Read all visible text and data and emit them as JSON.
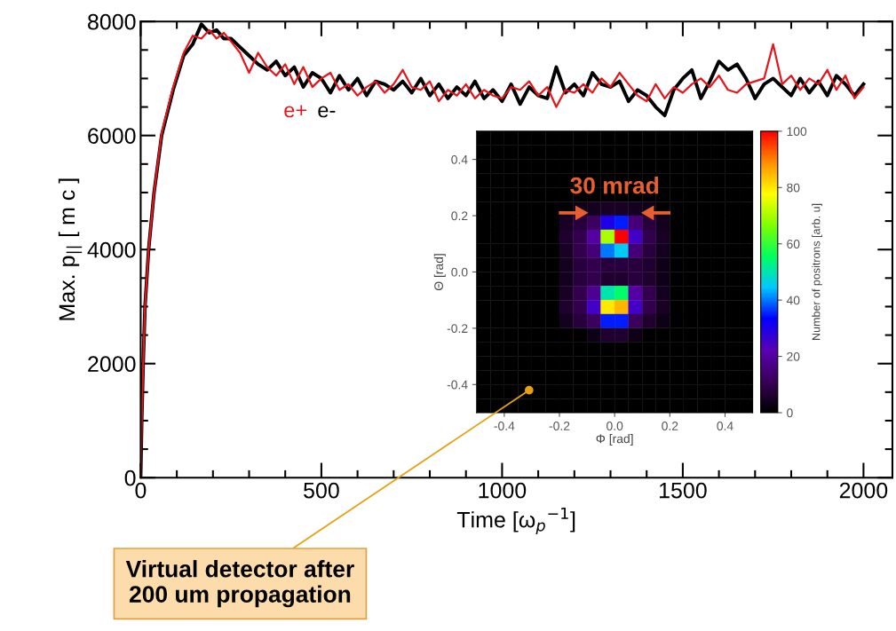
{
  "chart_data": [
    {
      "type": "line",
      "xlabel": "Time [ω$_{p}$$^{−1}$]",
      "ylabel": "Max. p$_{||}$ [ m c ]",
      "x": [
        0,
        3,
        7,
        12,
        22,
        37,
        58,
        90,
        119,
        144,
        168,
        190,
        210,
        230,
        250,
        275,
        300,
        325,
        350,
        375,
        400,
        425,
        450,
        475,
        500,
        525,
        550,
        575,
        600,
        625,
        650,
        675,
        700,
        725,
        750,
        775,
        800,
        825,
        850,
        875,
        900,
        925,
        950,
        975,
        1000,
        1025,
        1050,
        1075,
        1100,
        1125,
        1150,
        1175,
        1200,
        1225,
        1250,
        1275,
        1300,
        1325,
        1350,
        1375,
        1400,
        1425,
        1450,
        1475,
        1500,
        1525,
        1550,
        1575,
        1600,
        1625,
        1650,
        1675,
        1700,
        1725,
        1750,
        1775,
        1800,
        1825,
        1850,
        1875,
        1900,
        1925,
        1950,
        1975,
        2000
      ],
      "series": [
        {
          "name": "e-",
          "color": "#000000",
          "values": [
            0,
            1000,
            2000,
            3000,
            4000,
            5000,
            6000,
            6800,
            7400,
            7600,
            7950,
            7800,
            7850,
            7700,
            7700,
            7550,
            7400,
            7250,
            7150,
            7300,
            7050,
            7200,
            6850,
            7100,
            7000,
            6750,
            7050,
            6800,
            7000,
            6700,
            6950,
            6900,
            6800,
            6950,
            6750,
            7000,
            6700,
            6900,
            6650,
            6850,
            6700,
            6950,
            6650,
            6800,
            6600,
            6900,
            6550,
            6850,
            6700,
            6650,
            7200,
            6750,
            6900,
            6700,
            7100,
            6900,
            6850,
            6950,
            6600,
            6800,
            6700,
            6500,
            6350,
            6800,
            7000,
            7150,
            6650,
            6950,
            7300,
            7150,
            7250,
            7000,
            6650,
            6900,
            7000,
            6850,
            6700,
            7000,
            6750,
            6950,
            6700,
            7050,
            6900,
            6700,
            6900
          ]
        },
        {
          "name": "e+",
          "color": "#e8141c",
          "values": [
            0,
            1000,
            2000,
            3000,
            4000,
            5000,
            6050,
            6850,
            7450,
            7750,
            7700,
            7850,
            7700,
            7800,
            7650,
            7450,
            7100,
            7450,
            7200,
            7050,
            7250,
            6900,
            7200,
            6850,
            7000,
            7100,
            6800,
            6900,
            6700,
            6850,
            6950,
            6750,
            6900,
            7150,
            6850,
            6800,
            6950,
            6600,
            6800,
            6700,
            6900,
            6650,
            6800,
            6700,
            6650,
            6850,
            6800,
            6950,
            6700,
            6850,
            6500,
            6800,
            6750,
            6900,
            6750,
            7000,
            6850,
            7100,
            6900,
            6700,
            6600,
            6900,
            6650,
            6850,
            6750,
            6900,
            7000,
            6850,
            7050,
            6800,
            6750,
            6900,
            6950,
            7000,
            7600,
            6900,
            7050,
            6800,
            7000,
            6900,
            7150,
            6800,
            7050,
            6650,
            6850
          ]
        }
      ],
      "xlim": [
        0,
        2080
      ],
      "ylim": [
        0,
        8000
      ],
      "xticks": [
        0,
        {
          "value": 100,
          "label": null
        },
        {
          "value": 200,
          "label": null
        },
        {
          "value": 300,
          "label": null
        },
        {
          "value": 400,
          "label": null
        },
        500,
        {
          "value": 600,
          "label": null
        },
        {
          "value": 700,
          "label": null
        },
        {
          "value": 800,
          "label": null
        },
        {
          "value": 900,
          "label": null
        },
        1000,
        {
          "value": 1100,
          "label": null
        },
        {
          "value": 1200,
          "label": null
        },
        {
          "value": 1300,
          "label": null
        },
        {
          "value": 1400,
          "label": null
        },
        1500,
        {
          "value": 1600,
          "label": null
        },
        {
          "value": 1700,
          "label": null
        },
        {
          "value": 1800,
          "label": null
        },
        {
          "value": 1900,
          "label": null
        },
        2000
      ],
      "yticks": [
        0,
        {
          "value": 500,
          "label": null
        },
        {
          "value": 1000,
          "label": null
        },
        {
          "value": 1500,
          "label": null
        },
        2000,
        {
          "value": 2500,
          "label": null
        },
        {
          "value": 3000,
          "label": null
        },
        {
          "value": 3500,
          "label": null
        },
        4000,
        {
          "value": 4500,
          "label": null
        },
        {
          "value": 5000,
          "label": null
        },
        {
          "value": 5500,
          "label": null
        },
        6000,
        {
          "value": 6500,
          "label": null
        },
        {
          "value": 7000,
          "label": null
        },
        {
          "value": 7500,
          "label": null
        },
        8000
      ],
      "line_style": "solid",
      "grid": false
    },
    {
      "type": "heatmap",
      "xlabel": "Φ [rad]",
      "ylabel": "Θ [rad]",
      "clabel": "Number of positrons [arb. u]",
      "annotations": [
        "30 mrad",
        "Virtual detector after\n200 um propagation"
      ],
      "x": [
        -0.475,
        -0.425,
        -0.375,
        -0.325,
        -0.275,
        -0.225,
        -0.175,
        -0.125,
        -0.075,
        -0.025,
        0.025,
        0.075,
        0.125,
        0.175,
        0.225,
        0.275,
        0.325,
        0.375,
        0.425,
        0.475
      ],
      "y": [
        0.475,
        0.425,
        0.375,
        0.325,
        0.275,
        0.225,
        0.175,
        0.125,
        0.075,
        0.025,
        -0.025,
        -0.075,
        -0.125,
        -0.175,
        -0.225,
        -0.275,
        -0.325,
        -0.375,
        -0.425,
        -0.475
      ],
      "xlim": [
        -0.5,
        0.5
      ],
      "ylim": [
        -0.5,
        0.5
      ],
      "xticks": [
        -0.4,
        -0.2,
        {
          "value": 0,
          "label": "0.0"
        },
        0.2,
        0.4
      ],
      "yticks": [
        -0.4,
        -0.2,
        {
          "value": 0,
          "label": "0.0"
        },
        0.2,
        0.4
      ],
      "clim": [
        0,
        100
      ],
      "cticks": [
        0,
        20,
        40,
        60,
        80,
        100
      ],
      "cells": [
        [
          0,
          0,
          0,
          0,
          0,
          0,
          0,
          0,
          0,
          0,
          0,
          0,
          0,
          0,
          0,
          0,
          0,
          0,
          0,
          0
        ],
        [
          0,
          0,
          0,
          0,
          0,
          0,
          0,
          0,
          0,
          0,
          0,
          0,
          0,
          0,
          0,
          0,
          0,
          0,
          0,
          0
        ],
        [
          0,
          0,
          0,
          0,
          0,
          0,
          0,
          0,
          0,
          0,
          0,
          0,
          0,
          0,
          0,
          0,
          0,
          0,
          0,
          0
        ],
        [
          0,
          0,
          0,
          0,
          0,
          0,
          0,
          0,
          0,
          0,
          0,
          0,
          0,
          0,
          0,
          0,
          0,
          0,
          0,
          0
        ],
        [
          0,
          0,
          0,
          0,
          0,
          0,
          0,
          0,
          0,
          0,
          0,
          0,
          0,
          0,
          0,
          0,
          0,
          0,
          0,
          0
        ],
        [
          0,
          0,
          0,
          0,
          0,
          0,
          0,
          3,
          4,
          5,
          5,
          4,
          3,
          0,
          0,
          0,
          0,
          0,
          0,
          0
        ],
        [
          0,
          0,
          0,
          0,
          0,
          0,
          5,
          8,
          12,
          30,
          35,
          15,
          8,
          4,
          0,
          0,
          0,
          0,
          0,
          0
        ],
        [
          0,
          0,
          0,
          0,
          0,
          0,
          6,
          10,
          20,
          70,
          100,
          25,
          10,
          5,
          0,
          0,
          0,
          0,
          0,
          0
        ],
        [
          0,
          0,
          0,
          0,
          0,
          0,
          5,
          10,
          15,
          40,
          45,
          15,
          8,
          4,
          0,
          0,
          0,
          0,
          0,
          0
        ],
        [
          0,
          0,
          0,
          0,
          0,
          0,
          4,
          8,
          10,
          8,
          8,
          8,
          6,
          3,
          0,
          0,
          0,
          0,
          0,
          0
        ],
        [
          0,
          0,
          0,
          0,
          0,
          0,
          4,
          8,
          10,
          6,
          6,
          8,
          6,
          3,
          0,
          0,
          0,
          0,
          0,
          0
        ],
        [
          0,
          0,
          0,
          0,
          0,
          0,
          5,
          10,
          18,
          50,
          55,
          20,
          10,
          4,
          0,
          0,
          0,
          0,
          0,
          0
        ],
        [
          0,
          0,
          0,
          0,
          0,
          0,
          6,
          10,
          25,
          80,
          85,
          25,
          10,
          5,
          0,
          0,
          0,
          0,
          0,
          0
        ],
        [
          0,
          0,
          0,
          0,
          0,
          0,
          4,
          8,
          12,
          35,
          35,
          12,
          6,
          3,
          0,
          0,
          0,
          0,
          0,
          0
        ],
        [
          0,
          0,
          0,
          0,
          0,
          0,
          0,
          0,
          3,
          6,
          6,
          3,
          0,
          0,
          0,
          0,
          0,
          0,
          0,
          0
        ],
        [
          0,
          0,
          0,
          0,
          0,
          0,
          0,
          0,
          0,
          0,
          0,
          0,
          0,
          0,
          0,
          0,
          0,
          0,
          0,
          0
        ],
        [
          0,
          0,
          0,
          0,
          0,
          0,
          0,
          0,
          0,
          0,
          0,
          0,
          0,
          0,
          0,
          0,
          0,
          0,
          0,
          0
        ],
        [
          0,
          0,
          0,
          0,
          0,
          0,
          0,
          0,
          0,
          0,
          0,
          0,
          0,
          0,
          0,
          0,
          0,
          0,
          0,
          0
        ],
        [
          0,
          0,
          0,
          0,
          0,
          0,
          0,
          0,
          0,
          0,
          0,
          0,
          0,
          0,
          0,
          0,
          0,
          0,
          0,
          0
        ],
        [
          0,
          0,
          0,
          0,
          0,
          0,
          0,
          0,
          0,
          0,
          0,
          0,
          0,
          0,
          0,
          0,
          0,
          0,
          0,
          0
        ]
      ]
    }
  ]
}
